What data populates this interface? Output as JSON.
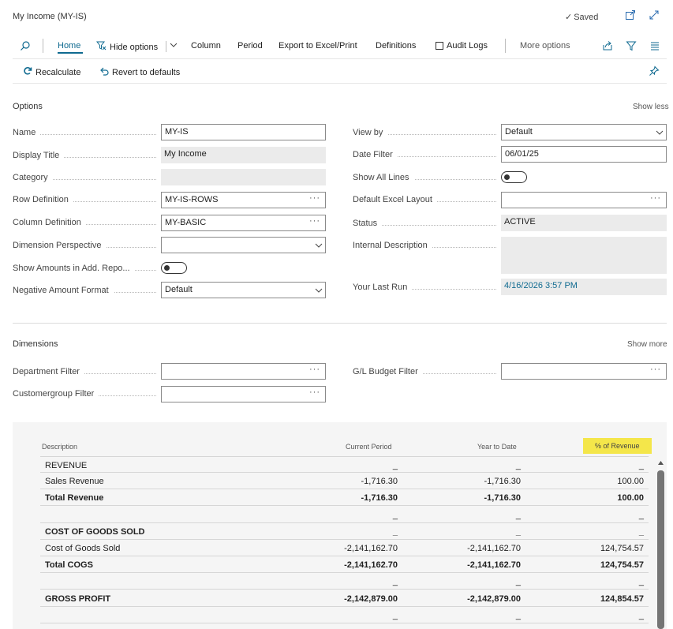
{
  "window": {
    "title": "My Income (MY-IS)",
    "saved_label": "Saved"
  },
  "actionbar": {
    "home": "Home",
    "hide_options": "Hide options",
    "column": "Column",
    "period": "Period",
    "export": "Export to Excel/Print",
    "definitions": "Definitions",
    "audit_logs": "Audit Logs",
    "more_options": "More options"
  },
  "subbar": {
    "recalculate": "Recalculate",
    "revert": "Revert to defaults"
  },
  "options": {
    "title": "Options",
    "toggle_link": "Show less",
    "fields": {
      "name": {
        "label": "Name",
        "value": "MY-IS"
      },
      "display_title": {
        "label": "Display Title",
        "value": "My Income"
      },
      "category": {
        "label": "Category",
        "value": ""
      },
      "row_definition": {
        "label": "Row Definition",
        "value": "MY-IS-ROWS"
      },
      "column_definition": {
        "label": "Column Definition",
        "value": "MY-BASIC"
      },
      "dimension_perspective": {
        "label": "Dimension Perspective",
        "value": ""
      },
      "show_amounts_add": {
        "label": "Show Amounts in Add. Repo...",
        "value": "off"
      },
      "negative_amount_format": {
        "label": "Negative Amount Format",
        "value": "Default"
      },
      "view_by": {
        "label": "View by",
        "value": "Default"
      },
      "date_filter": {
        "label": "Date Filter",
        "value": "06/01/25"
      },
      "show_all_lines": {
        "label": "Show All Lines",
        "value": "off"
      },
      "default_excel_layout": {
        "label": "Default Excel Layout",
        "value": ""
      },
      "status": {
        "label": "Status",
        "value": "ACTIVE"
      },
      "internal_description": {
        "label": "Internal Description",
        "value": ""
      },
      "your_last_run": {
        "label": "Your Last Run",
        "value": "4/16/2026 3:57 PM"
      }
    }
  },
  "dimensions": {
    "title": "Dimensions",
    "toggle_link": "Show more",
    "fields": {
      "department_filter": {
        "label": "Department Filter",
        "value": ""
      },
      "customergroup_filter": {
        "label": "Customergroup Filter",
        "value": ""
      },
      "gl_budget_filter": {
        "label": "G/L Budget Filter",
        "value": ""
      }
    }
  },
  "grid": {
    "columns": {
      "description": "Description",
      "current_period": "Current Period",
      "year_to_date": "Year to Date",
      "pct_revenue": "% of Revenue"
    },
    "highlight_color": "#f4e64a",
    "rows": [
      {
        "desc": "REVENUE",
        "cp": "_",
        "ytd": "_",
        "pct": "_",
        "bold": false
      },
      {
        "desc": "Sales Revenue",
        "cp": "-1,716.30",
        "ytd": "-1,716.30",
        "pct": "100.00",
        "bold": false
      },
      {
        "desc": "Total Revenue",
        "cp": "-1,716.30",
        "ytd": "-1,716.30",
        "pct": "100.00",
        "bold": true
      },
      {
        "desc": "",
        "cp": "_",
        "ytd": "_",
        "pct": "_",
        "bold": false
      },
      {
        "desc": "COST OF GOODS SOLD",
        "cp": "_",
        "ytd": "_",
        "pct": "_",
        "bold": true
      },
      {
        "desc": "Cost of Goods Sold",
        "cp": "-2,141,162.70",
        "ytd": "-2,141,162.70",
        "pct": "124,754.57",
        "bold": false
      },
      {
        "desc": "Total COGS",
        "cp": "-2,141,162.70",
        "ytd": "-2,141,162.70",
        "pct": "124,754.57",
        "bold": true
      },
      {
        "desc": "",
        "cp": "_",
        "ytd": "_",
        "pct": "_",
        "bold": false
      },
      {
        "desc": "GROSS PROFIT",
        "cp": "-2,142,879.00",
        "ytd": "-2,142,879.00",
        "pct": "124,854.57",
        "bold": true
      },
      {
        "desc": "",
        "cp": "_",
        "ytd": "_",
        "pct": "_",
        "bold": false
      }
    ]
  },
  "colors": {
    "accent": "#0f6a90",
    "readonly_bg": "#ebebeb"
  }
}
